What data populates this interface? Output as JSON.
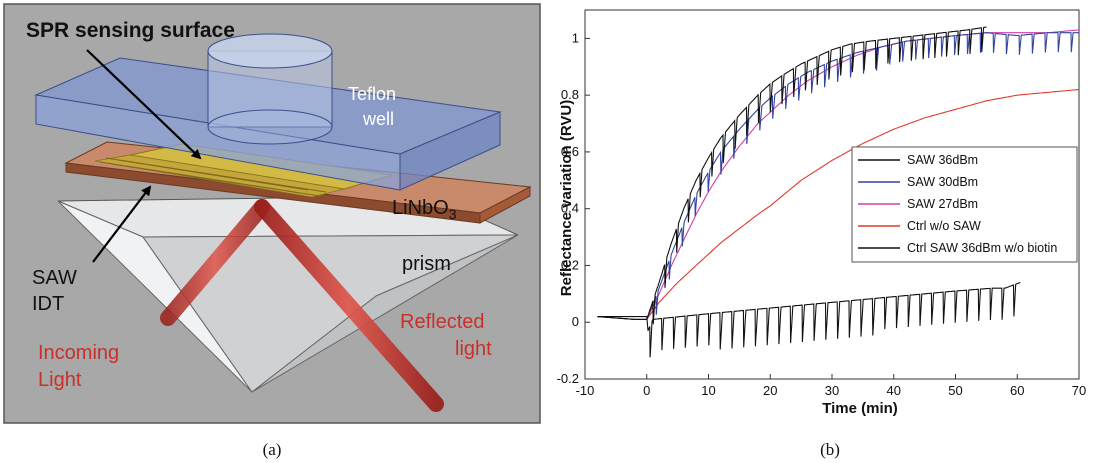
{
  "panel_a": {
    "caption": "(a)",
    "labels": {
      "spr_surface": "SPR sensing surface",
      "teflon": "Teflon",
      "well": "well",
      "linbo3_main": "LiNbO",
      "linbo3_sub": "3",
      "saw": "SAW",
      "idt": "IDT",
      "prism": "prism",
      "incoming_1": "Incoming",
      "incoming_2": "Light",
      "reflected_1": "Reflected",
      "reflected_2": "light"
    },
    "colors": {
      "background": "#a8a8a8",
      "teflon_block": "#8ea5d6",
      "substrate": "#b86f4e",
      "gold": "#c9b13c",
      "prism": "#d4d6d8",
      "beam": "#c8302a",
      "arrow": "#000000"
    }
  },
  "panel_b": {
    "caption": "(b)",
    "chart_data": {
      "type": "line",
      "xlabel": "Time (min)",
      "ylabel": "Reflectance variation (RVU)",
      "xlim": [
        -10,
        70
      ],
      "ylim": [
        -0.2,
        1.1
      ],
      "xticks": [
        -10,
        0,
        10,
        20,
        30,
        40,
        50,
        60,
        70
      ],
      "yticks": [
        -0.2,
        0,
        0.2,
        0.4,
        0.6,
        0.8,
        1
      ],
      "legend_position": "right",
      "grid": false,
      "series": [
        {
          "name": "SAW 36dBm",
          "color": "#111111",
          "kind": "saw-pulsed",
          "pulse_start": 1,
          "pulse_period": 1.9,
          "pulse_depth": 0.1,
          "x": [
            -8,
            -5,
            -2,
            0,
            2,
            4,
            6,
            8,
            10,
            12,
            15,
            18,
            20,
            22,
            25,
            28,
            30,
            33,
            36,
            40,
            44,
            48,
            52,
            55
          ],
          "y": [
            0.02,
            0.015,
            0.01,
            0.01,
            0.14,
            0.28,
            0.4,
            0.5,
            0.58,
            0.65,
            0.73,
            0.8,
            0.84,
            0.87,
            0.91,
            0.94,
            0.96,
            0.98,
            0.99,
            1.0,
            1.01,
            1.02,
            1.03,
            1.04
          ]
        },
        {
          "name": "SAW 30dBm",
          "color": "#3344a0",
          "kind": "saw-pulsed",
          "pulse_start": 1.5,
          "pulse_period": 2.1,
          "pulse_depth": 0.08,
          "x": [
            -8,
            -5,
            -2,
            0,
            2,
            4,
            6,
            8,
            10,
            12,
            15,
            18,
            20,
            23,
            26,
            30,
            34,
            38,
            42,
            46,
            50,
            55,
            60,
            65,
            70
          ],
          "y": [
            0.02,
            0.015,
            0.01,
            0.01,
            0.12,
            0.24,
            0.35,
            0.45,
            0.53,
            0.6,
            0.68,
            0.75,
            0.79,
            0.84,
            0.88,
            0.92,
            0.95,
            0.97,
            0.99,
            1.0,
            1.01,
            1.02,
            1.01,
            1.02,
            1.02
          ]
        },
        {
          "name": "SAW 27dBm",
          "color": "#d23fa8",
          "kind": "smooth",
          "x": [
            -8,
            -5,
            -2,
            0,
            2,
            4,
            6,
            8,
            10,
            12,
            15,
            18,
            20,
            23,
            26,
            30,
            34,
            38,
            42,
            46,
            50,
            55,
            60,
            65,
            70
          ],
          "y": [
            0.02,
            0.015,
            0.01,
            0.01,
            0.1,
            0.2,
            0.29,
            0.38,
            0.46,
            0.53,
            0.62,
            0.7,
            0.74,
            0.8,
            0.85,
            0.9,
            0.94,
            0.97,
            0.99,
            1.0,
            1.01,
            1.02,
            1.02,
            1.02,
            1.03
          ]
        },
        {
          "name": "Ctrl w/o SAW",
          "color": "#e03a2c",
          "kind": "smooth",
          "x": [
            -8,
            -5,
            -2,
            0,
            2,
            5,
            8,
            10,
            12,
            15,
            18,
            20,
            25,
            30,
            35,
            40,
            45,
            50,
            55,
            60,
            65,
            70
          ],
          "y": [
            0.02,
            0.015,
            0.01,
            0.01,
            0.07,
            0.14,
            0.2,
            0.24,
            0.28,
            0.33,
            0.38,
            0.41,
            0.5,
            0.57,
            0.63,
            0.68,
            0.72,
            0.75,
            0.78,
            0.8,
            0.81,
            0.82
          ]
        },
        {
          "name": "Ctrl SAW 36dBm w/o biotin",
          "color": "#111111",
          "kind": "saw-pulsed",
          "pulse_start": 0.5,
          "pulse_period": 1.9,
          "pulse_depth": 0.13,
          "x": [
            -8,
            -4,
            0,
            0.2,
            1,
            10,
            20,
            30,
            40,
            50,
            56,
            58,
            60.5
          ],
          "y": [
            0.02,
            0.02,
            0.02,
            -0.03,
            0.01,
            0.03,
            0.05,
            0.07,
            0.09,
            0.11,
            0.12,
            0.12,
            0.14
          ]
        }
      ]
    }
  }
}
